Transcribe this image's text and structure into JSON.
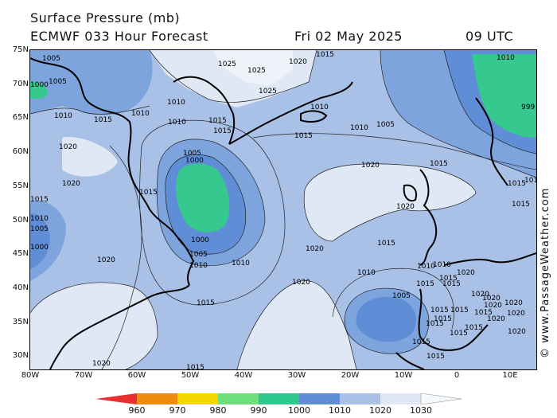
{
  "title_line1": "Surface Pressure (mb)",
  "title_line2": "ECMWF 033 Hour Forecast",
  "date": "Fri 02 May 2025",
  "time": "09 UTC",
  "watermark": "© www.PassageWeather.com",
  "lat_labels": [
    "75N",
    "70N",
    "65N",
    "60N",
    "55N",
    "50N",
    "45N",
    "40N",
    "35N",
    "30N"
  ],
  "lon_labels": [
    "80W",
    "70W",
    "60W",
    "50W",
    "40W",
    "30W",
    "20W",
    "10W",
    "0",
    "10E"
  ],
  "isobar_labels": [
    "1005",
    "1005",
    "1000",
    "1010",
    "1015",
    "1020",
    "1025",
    "1025",
    "1025",
    "1020",
    "1015",
    "1010",
    "1010",
    "1010",
    "1010",
    "1015",
    "1015",
    "1015",
    "1005",
    "1000",
    "1020",
    "1015",
    "1010",
    "1005",
    "1005",
    "1000",
    "1020",
    "1020",
    "1000",
    "1005",
    "1010",
    "1010",
    "1015",
    "1020",
    "1020",
    "1015",
    "1020",
    "1015",
    "1010",
    "1005",
    "1010",
    "1010",
    "1015",
    "1015",
    "1015",
    "1015",
    "1015",
    "1020",
    "1015",
    "1020",
    "1020",
    "1015",
    "1015",
    "1015",
    "1015",
    "1020",
    "1015",
    "1015",
    "1010",
    "1020",
    "1020",
    "1010",
    "1015",
    "1015",
    "1015",
    "1015",
    "1020",
    "1015",
    "1020",
    "1020",
    "999"
  ],
  "color_scale": {
    "labels": [
      "960",
      "970",
      "980",
      "990",
      "1000",
      "1010",
      "1020",
      "1030"
    ],
    "colors": [
      "#e83030",
      "#f08a10",
      "#f5d800",
      "#6ee07a",
      "#2ec98e",
      "#5f8ed6",
      "#a9c1e6",
      "#dfe8f4"
    ]
  },
  "colors": {
    "fill_1000": "#35c98f",
    "fill_1005": "#5f8ed6",
    "fill_1010": "#7ea4dd",
    "fill_1015": "#a9c1e6",
    "fill_1020": "#dfe8f4",
    "fill_1025": "#eef3fa",
    "land": "#000000"
  }
}
